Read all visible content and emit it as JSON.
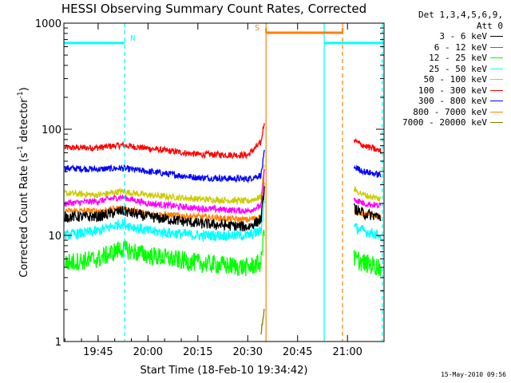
{
  "chart_data": {
    "type": "line",
    "title": "HESSI Observing Summary Count Rates, Corrected",
    "xlabel": "Start Time (18-Feb-10 19:34:42)",
    "ylabel_parts": [
      "Corrected Count Rate (s",
      "-1",
      " detector",
      "-1",
      ")"
    ],
    "yscale": "log",
    "ylim": [
      1,
      1000
    ],
    "xlim": [
      "19:34:42",
      "21:11:00"
    ],
    "x_tick_labels": [
      "19:45",
      "20:00",
      "20:15",
      "20:30",
      "20:45",
      "21:00"
    ],
    "x_ticks": [
      "19:45",
      "20:00",
      "20:15",
      "20:30",
      "20:45",
      "21:00"
    ],
    "y_tick_labels": [
      "1",
      "10",
      "100",
      "1000"
    ],
    "y_ticks": [
      1,
      10,
      100,
      1000
    ],
    "legend": {
      "header": [
        "Det 1,3,4,5,6,9,",
        "Att 0"
      ],
      "entries": [
        {
          "label": "3 - 6 keV",
          "color": "#000000"
        },
        {
          "label": "6 - 12 keV",
          "color": "#ff00ff"
        },
        {
          "label": "12 - 25 keV",
          "color": "#00ff00"
        },
        {
          "label": "25 - 50 keV",
          "color": "#00ffff"
        },
        {
          "label": "50 - 100 keV",
          "color": "#cccc00"
        },
        {
          "label": "100 - 300 keV",
          "color": "#ff0000"
        },
        {
          "label": "300 - 800 keV",
          "color": "#0000ff"
        },
        {
          "label": "800 - 7000 keV",
          "color": "#ff8000"
        },
        {
          "label": "7000 - 20000 keV",
          "color": "#808000"
        }
      ]
    },
    "series": [
      {
        "name": "100 - 300 keV",
        "color": "#ff0000",
        "x": [
          "19:35",
          "19:45",
          "19:52",
          "20:00",
          "20:15",
          "20:30",
          "20:34",
          "20:35"
        ],
        "y": [
          67,
          67,
          71,
          66,
          58,
          57,
          75,
          120
        ]
      },
      {
        "name": "300 - 800 keV",
        "color": "#0000ff",
        "x": [
          "19:35",
          "19:45",
          "19:52",
          "20:00",
          "20:15",
          "20:30",
          "20:34",
          "20:35"
        ],
        "y": [
          43,
          42,
          43,
          40,
          35,
          34,
          37,
          60
        ]
      },
      {
        "name": "50 - 100 keV",
        "color": "#cccc00",
        "x": [
          "19:35",
          "19:45",
          "19:52",
          "20:00",
          "20:15",
          "20:30",
          "20:34",
          "20:35"
        ],
        "y": [
          25,
          24,
          26,
          24,
          22,
          21,
          23,
          45
        ]
      },
      {
        "name": "6 - 12 keV",
        "color": "#ff00ff",
        "x": [
          "19:35",
          "19:45",
          "19:52",
          "20:00",
          "20:15",
          "20:30",
          "20:34",
          "20:35"
        ],
        "y": [
          20,
          21,
          23,
          20,
          18,
          17,
          19,
          40
        ]
      },
      {
        "name": "800 - 7000 keV",
        "color": "#ff8000",
        "x": [
          "19:35",
          "19:45",
          "19:52",
          "20:00",
          "20:15",
          "20:30",
          "20:34",
          "20:35"
        ],
        "y": [
          17,
          17,
          18,
          16,
          15,
          14,
          15,
          30
        ]
      },
      {
        "name": "3 - 6 keV",
        "color": "#000000",
        "x": [
          "19:35",
          "19:45",
          "19:52",
          "20:00",
          "20:15",
          "20:30",
          "20:34",
          "20:35"
        ],
        "y": [
          15,
          15,
          17,
          15,
          13,
          12,
          14,
          28
        ]
      },
      {
        "name": "25 - 50 keV",
        "color": "#00ffff",
        "x": [
          "19:35",
          "19:45",
          "19:52",
          "20:00",
          "20:15",
          "20:30",
          "20:34",
          "20:35"
        ],
        "y": [
          10,
          11,
          13,
          11,
          10,
          10,
          11,
          22
        ]
      },
      {
        "name": "12 - 25 keV",
        "color": "#00ff00",
        "x": [
          "19:35",
          "19:45",
          "19:52",
          "20:00",
          "20:15",
          "20:30",
          "20:34",
          "20:35"
        ],
        "y": [
          5.5,
          6,
          7.5,
          6.5,
          5.5,
          5,
          5.5,
          12
        ]
      },
      {
        "name": "7000 - 20000 keV",
        "color": "#808000",
        "x": [
          "20:34",
          "20:35"
        ],
        "y": [
          1.2,
          2
        ]
      }
    ],
    "series_after_gap": [
      {
        "name": "100 - 300 keV",
        "color": "#ff0000",
        "x": [
          "21:02",
          "21:05",
          "21:10"
        ],
        "y": [
          78,
          70,
          62
        ]
      },
      {
        "name": "300 - 800 keV",
        "color": "#0000ff",
        "x": [
          "21:02",
          "21:05",
          "21:10"
        ],
        "y": [
          44,
          40,
          37
        ]
      },
      {
        "name": "50 - 100 keV",
        "color": "#cccc00",
        "x": [
          "21:02",
          "21:05",
          "21:10"
        ],
        "y": [
          27,
          24,
          22
        ]
      },
      {
        "name": "6 - 12 keV",
        "color": "#ff00ff",
        "x": [
          "21:02",
          "21:05",
          "21:10"
        ],
        "y": [
          22,
          20,
          19
        ]
      },
      {
        "name": "800 - 7000 keV",
        "color": "#ff8000",
        "x": [
          "21:02",
          "21:05",
          "21:10"
        ],
        "y": [
          17,
          16,
          15
        ]
      },
      {
        "name": "3 - 6 keV",
        "color": "#000000",
        "x": [
          "21:02",
          "21:05",
          "21:10"
        ],
        "y": [
          18,
          16,
          15
        ]
      },
      {
        "name": "25 - 50 keV",
        "color": "#00ffff",
        "x": [
          "21:02",
          "21:05",
          "21:10"
        ],
        "y": [
          12,
          11,
          10
        ]
      },
      {
        "name": "12 - 25 keV",
        "color": "#00ff00",
        "x": [
          "21:02",
          "21:05",
          "21:10"
        ],
        "y": [
          6,
          5.5,
          5
        ]
      }
    ],
    "flags": [
      {
        "label": "N",
        "color": "#00ffff",
        "x_start": "19:34:42",
        "x_end": "19:53"
      },
      {
        "label": "S",
        "color": "#ff8000",
        "x_start": "20:35:30",
        "x_end": "20:58:30"
      },
      {
        "label": "",
        "color": "#00ffff",
        "x_start": "20:53",
        "x_end": "21:11"
      }
    ],
    "flag_level": 650,
    "solid_vlines": [
      {
        "x": "20:35:30",
        "color": "#ff8000"
      },
      {
        "x": "20:53",
        "color": "#00ffff"
      }
    ],
    "dashed_vlines": [
      {
        "x": "19:53",
        "color": "#00ffff"
      },
      {
        "x": "20:58:30",
        "color": "#ff8000"
      },
      {
        "x": "21:10:30",
        "color": "#00ffff"
      }
    ]
  },
  "footer_timestamp": "15-May-2010 09:56"
}
